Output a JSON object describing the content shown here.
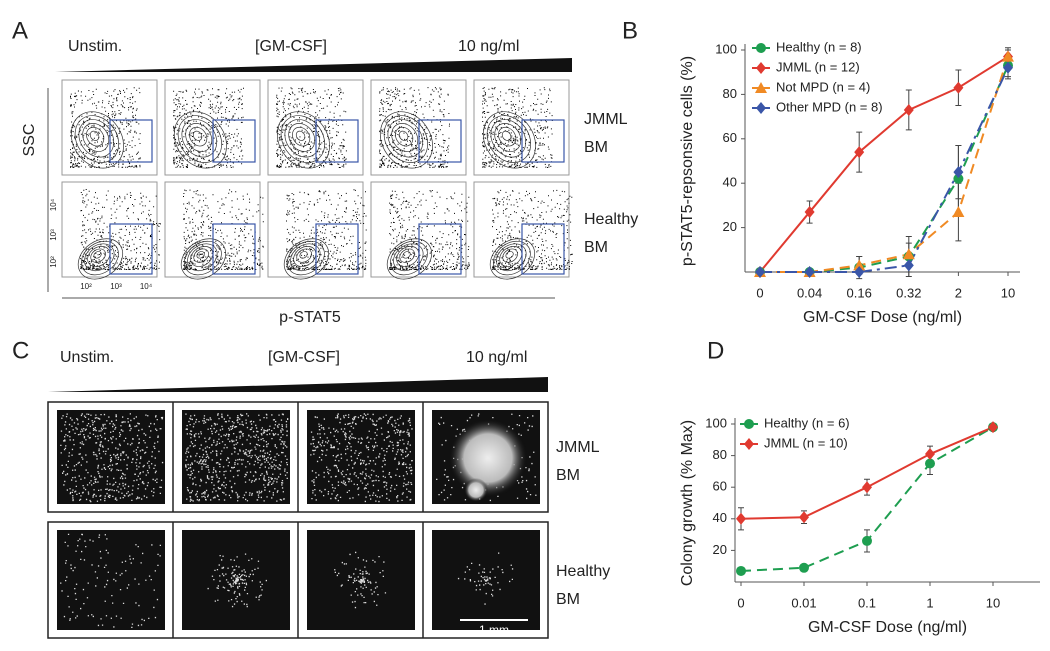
{
  "panel_a": {
    "label": "A",
    "dose_labels": [
      "Unstim.",
      "[GM-CSF]",
      "10 ng/ml"
    ],
    "row_labels": [
      [
        "JMML",
        "BM"
      ],
      [
        "Healthy",
        "BM"
      ]
    ],
    "y_label": "SSC",
    "x_label": "p-STAT5",
    "y_axis_ticks": [
      "10⁴",
      "10³",
      "10²"
    ],
    "x_axis_ticks": [
      "10²",
      "10³",
      "10⁴"
    ]
  },
  "panel_c": {
    "label": "C",
    "dose_labels": [
      "Unstim.",
      "[GM-CSF]",
      "10 ng/ml"
    ],
    "row_labels": [
      [
        "JMML",
        "BM"
      ],
      [
        "Healthy",
        "BM"
      ]
    ],
    "scale_bar": "1 mm"
  },
  "chart_data": [
    {
      "type": "line",
      "label": "B",
      "xlabel": "GM-CSF Dose (ng/ml)",
      "ylabel": "p-STAT5-repsonsive cells (%)",
      "categories": [
        "0",
        "0.04",
        "0.16",
        "0.32",
        "2",
        "10"
      ],
      "ylim": [
        0,
        100
      ],
      "yticks": [
        20,
        40,
        60,
        80,
        100
      ],
      "legend": "upper left",
      "series": [
        {
          "name": "Healthy (n = 8)",
          "color": "#1e9e50",
          "marker": "circle",
          "dash": "dashed",
          "values": [
            0,
            0,
            2,
            7,
            42,
            93
          ],
          "errors": [
            0,
            0,
            5,
            9,
            15,
            5
          ]
        },
        {
          "name": "JMML (n = 12)",
          "color": "#e03a30",
          "marker": "diamond",
          "dash": "solid",
          "values": [
            0,
            27,
            54,
            73,
            83,
            97
          ],
          "errors": [
            0,
            5,
            9,
            9,
            8,
            4
          ]
        },
        {
          "name": "Not MPD (n = 4)",
          "color": "#f08a24",
          "marker": "triangle",
          "dash": "dashed",
          "values": [
            0,
            0,
            3,
            8,
            27,
            97
          ],
          "errors": [
            0,
            0,
            4,
            5,
            13,
            3
          ]
        },
        {
          "name": "Other MPD (n = 8)",
          "color": "#3a56a8",
          "marker": "diamond",
          "dash": "dashdot",
          "values": [
            0,
            0,
            0,
            3,
            45,
            92
          ],
          "errors": [
            0,
            0,
            0,
            3,
            12,
            5
          ]
        }
      ]
    },
    {
      "type": "line",
      "label": "D",
      "xlabel": "GM-CSF Dose (ng/ml)",
      "ylabel": "Colony growth (% Max)",
      "categories": [
        "0",
        "0.01",
        "0.1",
        "1",
        "10"
      ],
      "ylim": [
        0,
        100
      ],
      "yticks": [
        20,
        40,
        60,
        80,
        100
      ],
      "legend": "upper left",
      "series": [
        {
          "name": "Healthy (n = 6)",
          "color": "#1e9e50",
          "marker": "circle",
          "dash": "dashed",
          "values": [
            7,
            9,
            26,
            75,
            98
          ],
          "errors": [
            0,
            0,
            7,
            7,
            0
          ]
        },
        {
          "name": "JMML (n = 10)",
          "color": "#e03a30",
          "marker": "diamond",
          "dash": "solid",
          "values": [
            40,
            41,
            60,
            81,
            98
          ],
          "errors": [
            7,
            4,
            5,
            5,
            0
          ]
        }
      ]
    }
  ]
}
